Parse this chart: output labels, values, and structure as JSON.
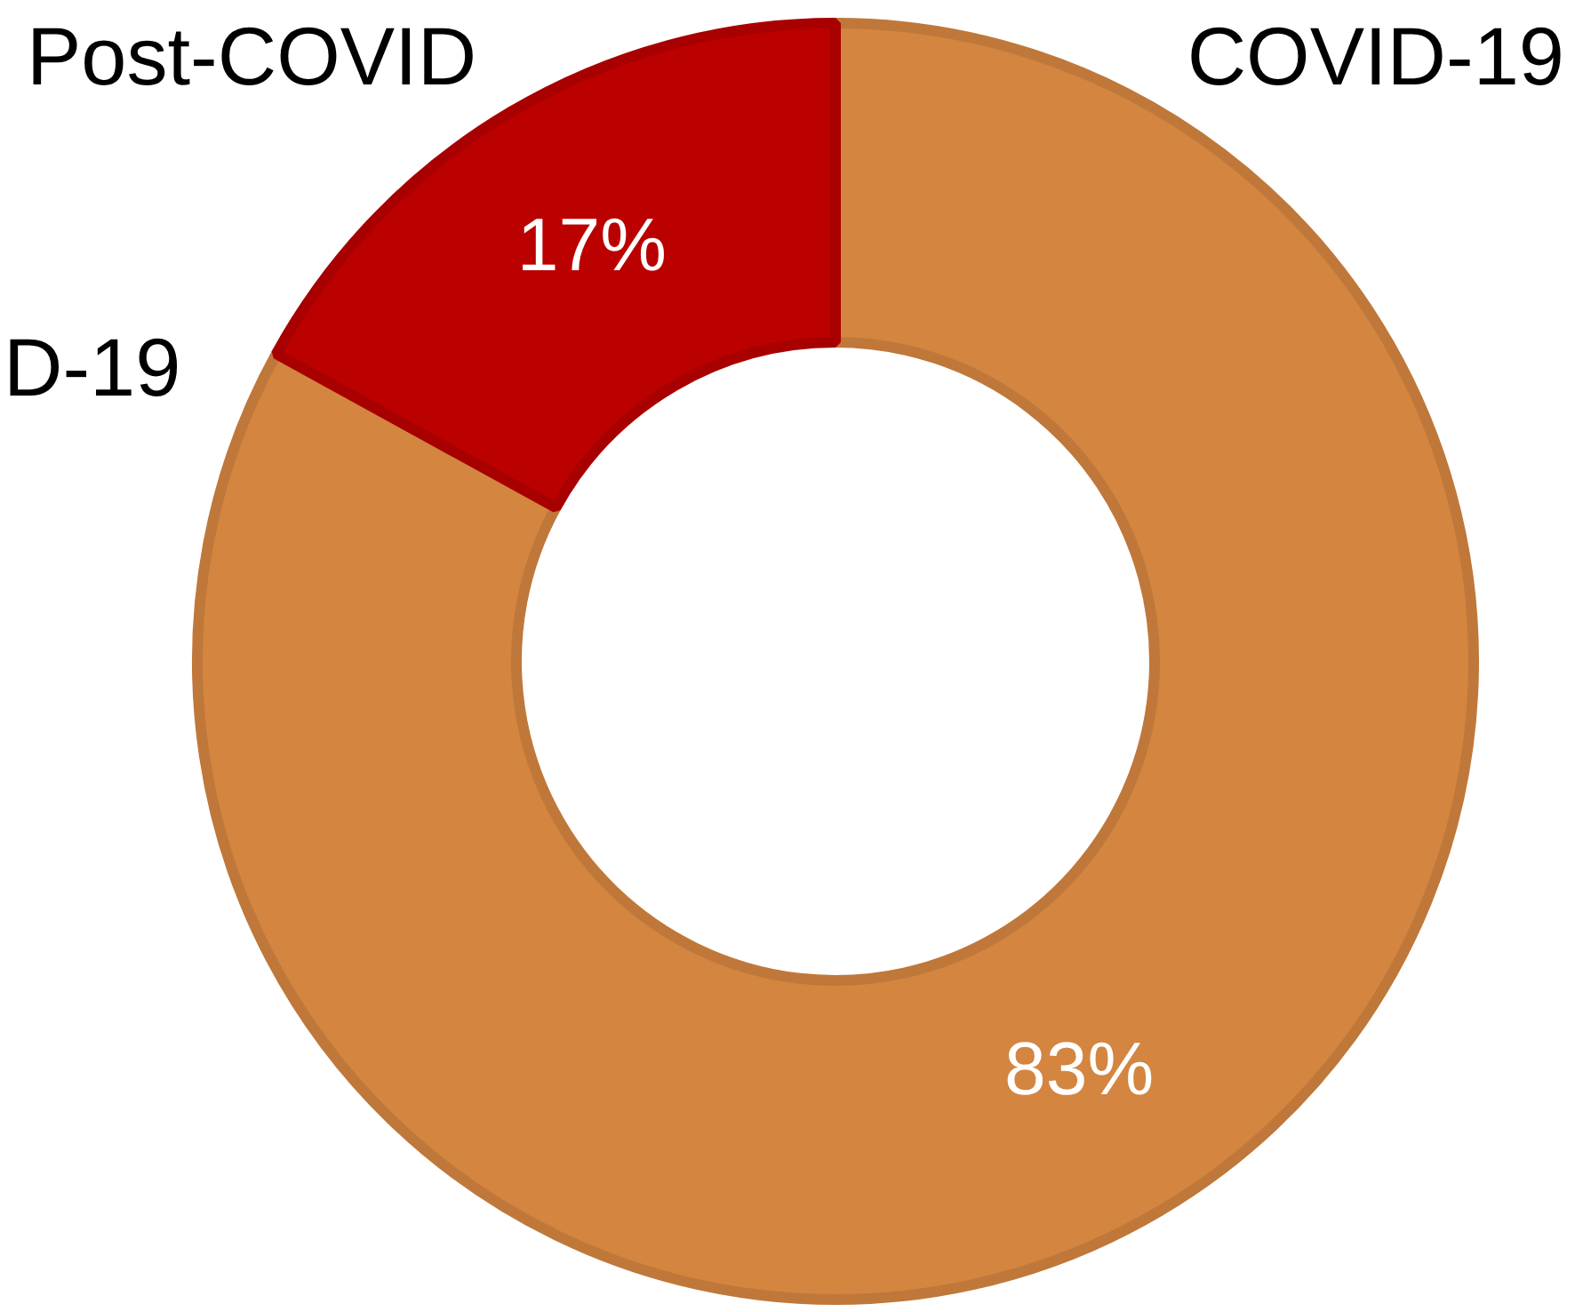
{
  "chart_data": {
    "type": "donut",
    "categories": [
      "COVID-19",
      "Post-COVID"
    ],
    "values": [
      83,
      17
    ],
    "colors": [
      "#d48540",
      "#bb0000"
    ],
    "value_labels": [
      "83%",
      "17%"
    ],
    "annotations": [
      "D-19"
    ]
  }
}
